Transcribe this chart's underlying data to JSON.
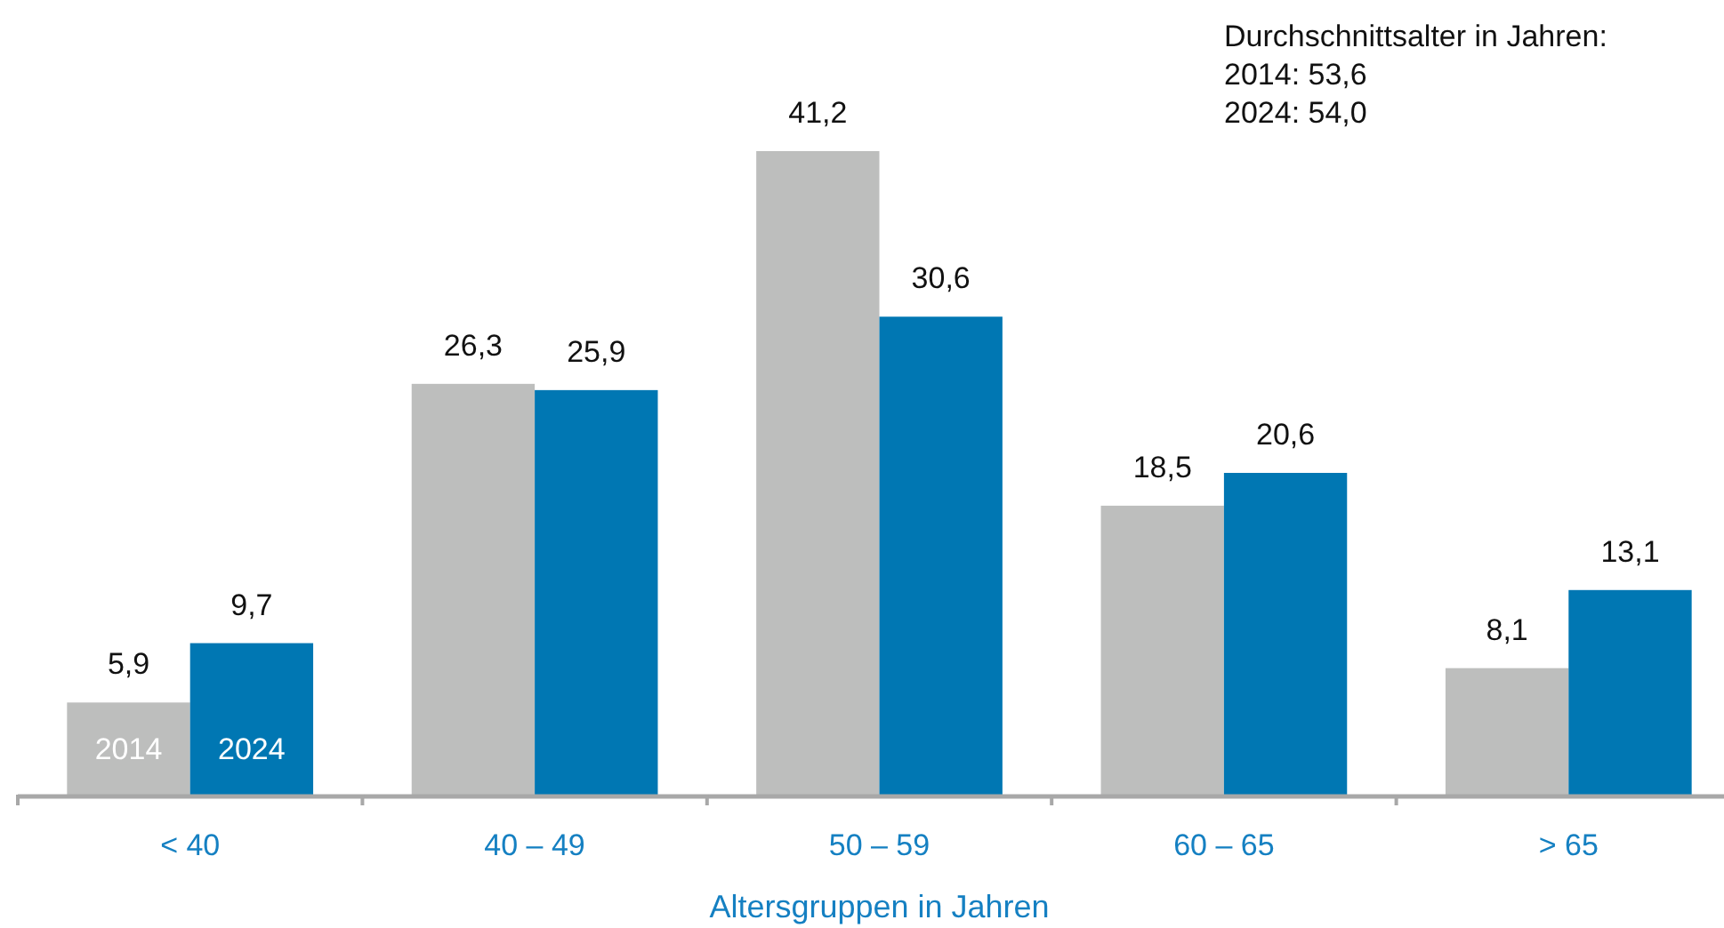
{
  "chart_data": {
    "type": "bar",
    "xlabel": "Altersgruppen in Jahren",
    "annotations": [
      "Durchschnittsalter in Jahren:\n2014: 53,6\n2024: 54,0"
    ],
    "categories": [
      "< 40",
      "40 – 49",
      "50 – 59",
      "60 – 65",
      "> 65"
    ],
    "series": [
      {
        "name": "2014",
        "color": "#bdbebd",
        "values": [
          5.9,
          26.3,
          41.2,
          18.5,
          8.1
        ],
        "value_labels": [
          "5,9",
          "26,3",
          "41,2",
          "18,5",
          "8,1"
        ]
      },
      {
        "name": "2024",
        "color": "#0077b3",
        "values": [
          9.7,
          25.9,
          30.6,
          20.6,
          13.1
        ],
        "value_labels": [
          "9,7",
          "25,9",
          "30,6",
          "20,6",
          "13,1"
        ]
      }
    ]
  }
}
